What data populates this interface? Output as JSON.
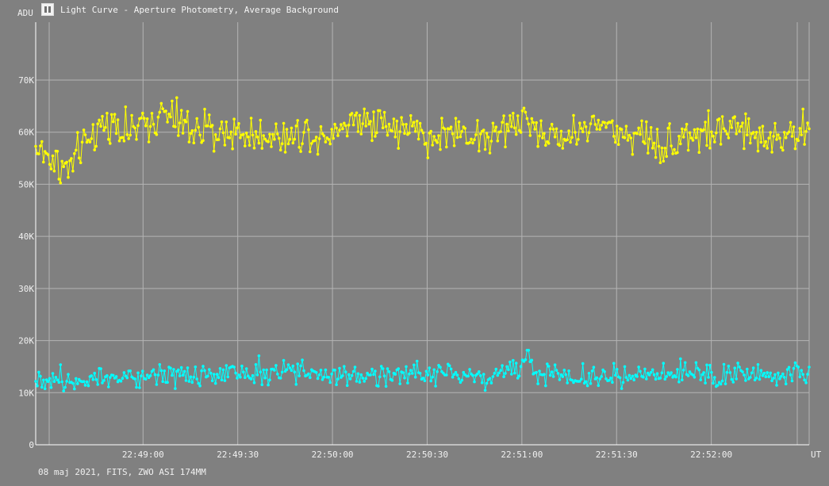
{
  "window": {
    "title": "Light Curve - Aperture Photometry, Average Background",
    "icon": "light-curve-app-icon"
  },
  "footer": {
    "caption": "08 maj 2021, FITS, ZWO ASI 174MM"
  },
  "colors": {
    "background": "#808080",
    "grid": "#b4b4b4",
    "axis": "#ffffff",
    "series_1": "#ffff00",
    "series_2": "#00ffff"
  },
  "chart_data": {
    "type": "line",
    "title": "Light Curve - Aperture Photometry, Average Background",
    "xlabel": "UT",
    "ylabel": "ADU",
    "x_unit": "time (UT)",
    "xlim": [
      "22:48:26",
      "22:52:31"
    ],
    "ylim": [
      0,
      70000
    ],
    "x_ticks": [
      "22:49:00",
      "22:49:30",
      "22:50:00",
      "22:50:30",
      "22:51:00",
      "22:51:30",
      "22:52:00"
    ],
    "y_ticks": [
      {
        "value": 0,
        "label": "0"
      },
      {
        "value": 10000,
        "label": "10K"
      },
      {
        "value": 20000,
        "label": "20K"
      },
      {
        "value": 30000,
        "label": "30K"
      },
      {
        "value": 40000,
        "label": "40K"
      },
      {
        "value": 50000,
        "label": "50K"
      },
      {
        "value": 60000,
        "label": "60K"
      },
      {
        "value": 70000,
        "label": "70K"
      }
    ],
    "grid": true,
    "markers": true,
    "series": [
      {
        "color": "#ffff00",
        "x_start": "22:48:26",
        "x_end": "22:52:31",
        "points": 500,
        "mean": 59500,
        "min": 46500,
        "max": 70500,
        "values": [
          57000,
          55000,
          52500,
          57000,
          61000,
          62000,
          60000,
          61500,
          63500,
          62000,
          60500,
          60000,
          60000,
          60000,
          59000,
          60000,
          58500,
          60500,
          59000,
          61000,
          62000,
          63000,
          62000,
          60500,
          60500,
          58500,
          60000,
          60000,
          59500,
          59000,
          61000,
          62500,
          60000,
          59000,
          59500,
          61500,
          61500,
          59500,
          60000,
          58500,
          57000,
          60000,
          59500,
          60000,
          60500,
          60000,
          59000,
          59500,
          60000,
          60500
        ]
      },
      {
        "color": "#00ffff",
        "x_start": "22:48:26",
        "x_end": "22:52:31",
        "points": 500,
        "mean": 13000,
        "min": 6500,
        "max": 21500,
        "values": [
          13000,
          12500,
          12500,
          13000,
          13500,
          13000,
          13000,
          13500,
          14000,
          14000,
          13000,
          13000,
          13000,
          13500,
          13500,
          13500,
          14000,
          14000,
          13500,
          13000,
          13500,
          13500,
          13500,
          13000,
          14000,
          14000,
          14500,
          13500,
          13000,
          13000,
          14500,
          15500,
          14000,
          13500,
          13500,
          13000,
          13000,
          13500,
          13000,
          13000,
          13500,
          13500,
          13500,
          13000,
          13500,
          13500,
          13000,
          13500,
          14000,
          14500
        ]
      }
    ]
  }
}
